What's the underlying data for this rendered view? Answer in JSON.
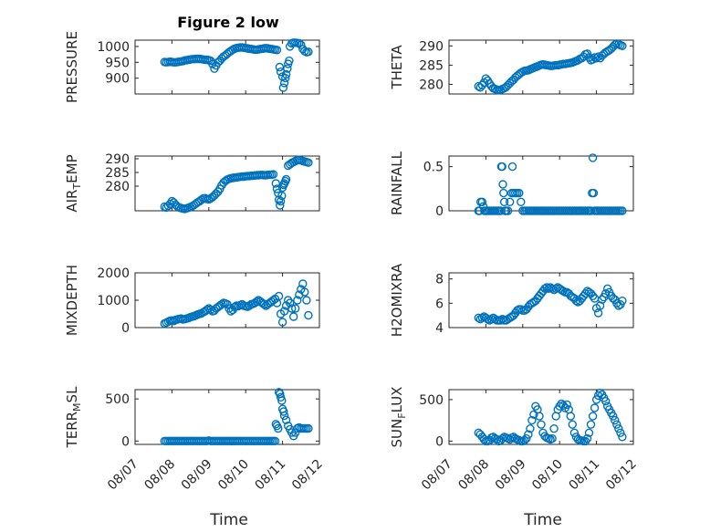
{
  "figure": {
    "title": "Figure 2 low",
    "marker_color": "#0072BD",
    "x_ticks": [
      "08/07",
      "08/08",
      "08/09",
      "08/10",
      "08/11",
      "08/12"
    ],
    "x_label": "Time"
  },
  "chart_data": [
    {
      "type": "scatter",
      "ylabel": "PRESSURE",
      "ylim": [
        850,
        1020
      ],
      "yticks": [
        900,
        950,
        1000
      ],
      "grid": true,
      "x": [
        7.8,
        7.85,
        7.9,
        7.95,
        8.0,
        8.05,
        8.1,
        8.15,
        8.2,
        8.25,
        8.3,
        8.35,
        8.4,
        8.45,
        8.5,
        8.55,
        8.6,
        8.65,
        8.7,
        8.75,
        8.8,
        8.85,
        8.9,
        8.95,
        9.0,
        9.05,
        9.1,
        9.15,
        9.2,
        9.25,
        9.3,
        9.35,
        9.4,
        9.45,
        9.5,
        9.55,
        9.6,
        9.65,
        9.7,
        9.75,
        9.8,
        9.85,
        9.9,
        9.95,
        10.0,
        10.05,
        10.1,
        10.15,
        10.2,
        10.25,
        10.3,
        10.35,
        10.4,
        10.45,
        10.5,
        10.55,
        10.6,
        10.65,
        10.7,
        10.75,
        10.8,
        10.85,
        10.92,
        10.95,
        11.0,
        11.02,
        11.05,
        11.08,
        11.1,
        11.13,
        11.15,
        11.18,
        11.2,
        11.25,
        11.3,
        11.35,
        11.4,
        11.45,
        11.5,
        11.55,
        11.6,
        11.65,
        11.7
      ],
      "y": [
        951,
        950,
        951,
        952,
        951,
        950,
        950,
        951,
        952,
        953,
        954,
        956,
        957,
        958,
        959,
        960,
        960,
        961,
        961,
        961,
        960,
        959,
        958,
        958,
        957,
        955,
        945,
        930,
        940,
        950,
        955,
        962,
        968,
        972,
        977,
        982,
        986,
        990,
        993,
        995,
        996,
        997,
        997,
        996,
        995,
        994,
        993,
        992,
        991,
        990,
        990,
        991,
        992,
        993,
        994,
        995,
        994,
        993,
        992,
        991,
        990,
        989,
        935,
        920,
        905,
        870,
        885,
        900,
        912,
        930,
        945,
        955,
        1000,
        1010,
        1012,
        1012,
        1011,
        1010,
        1005,
        992,
        985,
        982,
        983
      ]
    },
    {
      "type": "scatter",
      "ylabel": "THETA",
      "ylim": [
        277.5,
        291.5
      ],
      "yticks": [
        280,
        285,
        290
      ],
      "grid": true,
      "x": [
        7.8,
        7.85,
        7.9,
        7.95,
        8.0,
        8.05,
        8.1,
        8.15,
        8.2,
        8.25,
        8.3,
        8.35,
        8.4,
        8.45,
        8.5,
        8.55,
        8.6,
        8.65,
        8.7,
        8.75,
        8.8,
        8.85,
        8.9,
        8.95,
        9.0,
        9.05,
        9.1,
        9.15,
        9.2,
        9.25,
        9.3,
        9.35,
        9.4,
        9.45,
        9.5,
        9.55,
        9.6,
        9.65,
        9.7,
        9.75,
        9.8,
        9.85,
        9.9,
        9.95,
        10.0,
        10.05,
        10.1,
        10.15,
        10.2,
        10.25,
        10.3,
        10.35,
        10.4,
        10.45,
        10.5,
        10.55,
        10.6,
        10.65,
        10.7,
        10.75,
        10.8,
        10.85,
        10.9,
        10.95,
        11.0,
        11.05,
        11.1,
        11.15,
        11.2,
        11.25,
        11.3,
        11.35,
        11.4,
        11.45,
        11.5,
        11.55,
        11.6,
        11.65,
        11.7
      ],
      "y": [
        279.5,
        279.2,
        279.8,
        280.5,
        281.5,
        281.0,
        280.2,
        279.5,
        279.0,
        278.8,
        278.6,
        278.5,
        278.6,
        278.8,
        279.0,
        279.3,
        279.8,
        280.3,
        280.8,
        281.2,
        281.8,
        282.2,
        282.6,
        283.0,
        283.3,
        283.5,
        283.6,
        283.7,
        283.9,
        284.1,
        284.3,
        284.5,
        284.7,
        284.9,
        285.1,
        285.2,
        285.1,
        285.0,
        284.9,
        284.8,
        284.8,
        284.9,
        285.0,
        285.0,
        285.1,
        285.2,
        285.3,
        285.3,
        285.4,
        285.5,
        285.6,
        285.7,
        285.9,
        286.1,
        286.3,
        286.6,
        286.8,
        287.2,
        287.8,
        288.0,
        287.0,
        286.3,
        286.5,
        287.0,
        286.8,
        287.2,
        286.8,
        287.5,
        287.9,
        288.3,
        288.6,
        288.9,
        289.3,
        289.8,
        290.3,
        290.6,
        290.4,
        290.2,
        290.0
      ]
    },
    {
      "type": "scatter",
      "ylabel": "AIR_TEMP",
      "ylim": [
        271,
        291
      ],
      "yticks": [
        280,
        285,
        290
      ],
      "grid": true,
      "x": [
        7.8,
        7.85,
        7.9,
        7.95,
        8.0,
        8.05,
        8.1,
        8.15,
        8.2,
        8.25,
        8.3,
        8.35,
        8.4,
        8.45,
        8.5,
        8.55,
        8.6,
        8.65,
        8.7,
        8.75,
        8.8,
        8.85,
        8.9,
        8.95,
        9.0,
        9.05,
        9.1,
        9.15,
        9.2,
        9.25,
        9.3,
        9.35,
        9.4,
        9.45,
        9.5,
        9.55,
        9.6,
        9.65,
        9.7,
        9.75,
        9.8,
        9.85,
        9.9,
        9.95,
        10.0,
        10.05,
        10.1,
        10.15,
        10.2,
        10.25,
        10.3,
        10.35,
        10.4,
        10.45,
        10.5,
        10.55,
        10.6,
        10.65,
        10.7,
        10.75,
        10.82,
        10.85,
        10.88,
        10.9,
        10.93,
        10.95,
        10.98,
        11.0,
        11.03,
        11.05,
        11.08,
        11.1,
        11.15,
        11.2,
        11.25,
        11.3,
        11.35,
        11.4,
        11.45,
        11.5,
        11.55,
        11.6,
        11.65,
        11.7
      ],
      "y": [
        272.5,
        272.2,
        272.8,
        273.5,
        274.5,
        274.0,
        273.2,
        272.6,
        272.2,
        272.0,
        271.8,
        271.7,
        271.9,
        272.1,
        272.4,
        272.7,
        273.1,
        273.6,
        274.1,
        274.5,
        275.0,
        275.5,
        275.6,
        275.3,
        275.2,
        275.5,
        276.0,
        276.6,
        277.3,
        278.0,
        279.0,
        280.3,
        281.3,
        281.9,
        282.4,
        282.7,
        282.9,
        283.0,
        283.1,
        283.2,
        283.3,
        283.4,
        283.5,
        283.5,
        283.6,
        283.7,
        283.7,
        283.8,
        283.8,
        283.9,
        284.0,
        284.0,
        284.1,
        284.1,
        284.0,
        284.0,
        284.1,
        284.2,
        284.2,
        284.3,
        281.0,
        279.0,
        277.5,
        275.0,
        273.0,
        274.5,
        276.5,
        279.5,
        280.5,
        281.0,
        281.8,
        282.5,
        287.5,
        288.0,
        288.5,
        288.8,
        289.2,
        289.5,
        289.6,
        289.4,
        289.2,
        289.0,
        288.8,
        288.6
      ]
    },
    {
      "type": "scatter",
      "ylabel": "RAINFALL",
      "ylim": [
        0,
        0.62
      ],
      "yticks": [
        0,
        0.5
      ],
      "grid": true,
      "x": [
        7.8,
        7.83,
        7.86,
        7.9,
        7.93,
        7.96,
        8.0,
        8.05,
        8.1,
        8.15,
        8.2,
        8.25,
        8.3,
        8.35,
        8.4,
        8.42,
        8.44,
        8.46,
        8.48,
        8.5,
        8.52,
        8.55,
        8.6,
        8.65,
        8.7,
        8.72,
        8.75,
        8.8,
        8.85,
        8.9,
        8.95,
        9.0,
        9.05,
        9.1,
        9.15,
        9.2,
        9.25,
        9.3,
        9.35,
        9.4,
        9.45,
        9.5,
        9.55,
        9.6,
        9.65,
        9.7,
        9.75,
        9.8,
        9.85,
        9.9,
        9.95,
        10.0,
        10.05,
        10.1,
        10.15,
        10.2,
        10.25,
        10.3,
        10.35,
        10.4,
        10.45,
        10.5,
        10.55,
        10.6,
        10.65,
        10.7,
        10.75,
        10.8,
        10.85,
        10.88,
        10.9,
        10.92,
        10.95,
        11.0,
        11.05,
        11.1,
        11.15,
        11.2,
        11.25,
        11.3,
        11.35,
        11.4,
        11.45,
        11.5,
        11.55,
        11.6,
        11.65,
        11.7
      ],
      "y": [
        0,
        0,
        0.1,
        0.1,
        0.05,
        0,
        0,
        0,
        0,
        0,
        0,
        0,
        0,
        0,
        0,
        0.5,
        0.5,
        0.3,
        0.2,
        0.1,
        0,
        0,
        0,
        0.1,
        0.2,
        0.5,
        0.2,
        0.2,
        0.2,
        0.2,
        0.1,
        0,
        0,
        0,
        0,
        0,
        0,
        0,
        0,
        0,
        0,
        0,
        0,
        0,
        0,
        0,
        0,
        0,
        0,
        0,
        0,
        0,
        0,
        0,
        0,
        0,
        0,
        0,
        0,
        0,
        0,
        0,
        0,
        0,
        0,
        0,
        0,
        0,
        0,
        0.2,
        0.6,
        0.2,
        0,
        0,
        0,
        0,
        0,
        0,
        0,
        0,
        0,
        0,
        0,
        0,
        0,
        0,
        0,
        0
      ]
    },
    {
      "type": "scatter",
      "ylabel": "MIXDEPTH",
      "ylim": [
        0,
        2000
      ],
      "yticks": [
        0,
        1000,
        2000
      ],
      "grid": true,
      "x": [
        7.8,
        7.85,
        7.9,
        7.95,
        8.0,
        8.05,
        8.1,
        8.15,
        8.2,
        8.25,
        8.3,
        8.35,
        8.4,
        8.45,
        8.5,
        8.55,
        8.6,
        8.65,
        8.7,
        8.75,
        8.8,
        8.85,
        8.9,
        8.95,
        9.0,
        9.05,
        9.1,
        9.15,
        9.2,
        9.25,
        9.3,
        9.35,
        9.4,
        9.45,
        9.5,
        9.55,
        9.6,
        9.65,
        9.7,
        9.75,
        9.8,
        9.85,
        9.9,
        9.95,
        10.0,
        10.05,
        10.1,
        10.15,
        10.2,
        10.25,
        10.3,
        10.35,
        10.4,
        10.45,
        10.5,
        10.55,
        10.6,
        10.65,
        10.7,
        10.75,
        10.8,
        10.85,
        10.9,
        10.95,
        11.0,
        11.05,
        11.1,
        11.15,
        11.2,
        11.25,
        11.3,
        11.35,
        11.4,
        11.45,
        11.5,
        11.55,
        11.6,
        11.65,
        11.7
      ],
      "y": [
        150,
        180,
        220,
        250,
        260,
        240,
        280,
        300,
        320,
        330,
        300,
        310,
        330,
        350,
        380,
        400,
        420,
        450,
        480,
        500,
        520,
        560,
        600,
        650,
        700,
        650,
        600,
        620,
        700,
        750,
        800,
        850,
        900,
        880,
        850,
        700,
        600,
        650,
        750,
        800,
        780,
        820,
        850,
        800,
        780,
        760,
        800,
        850,
        870,
        900,
        950,
        1000,
        950,
        900,
        850,
        800,
        850,
        900,
        950,
        1000,
        1050,
        900,
        1150,
        500,
        200,
        600,
        800,
        1000,
        900,
        700,
        400,
        700,
        1000,
        1200,
        1400,
        1600,
        1300,
        1000,
        450
      ]
    },
    {
      "type": "scatter",
      "ylabel": "H2OMIXRA",
      "ylim": [
        4,
        8.5
      ],
      "yticks": [
        4,
        6,
        8
      ],
      "grid": true,
      "x": [
        7.8,
        7.85,
        7.9,
        7.95,
        8.0,
        8.05,
        8.1,
        8.15,
        8.2,
        8.25,
        8.3,
        8.35,
        8.4,
        8.45,
        8.5,
        8.55,
        8.6,
        8.65,
        8.7,
        8.75,
        8.8,
        8.85,
        8.9,
        8.95,
        9.0,
        9.05,
        9.1,
        9.15,
        9.2,
        9.25,
        9.3,
        9.35,
        9.4,
        9.45,
        9.5,
        9.55,
        9.6,
        9.65,
        9.7,
        9.75,
        9.8,
        9.85,
        9.9,
        9.95,
        10.0,
        10.05,
        10.1,
        10.15,
        10.2,
        10.25,
        10.3,
        10.35,
        10.4,
        10.45,
        10.5,
        10.55,
        10.6,
        10.65,
        10.7,
        10.75,
        10.8,
        10.85,
        10.9,
        10.95,
        11.0,
        11.05,
        11.1,
        11.15,
        11.2,
        11.25,
        11.3,
        11.35,
        11.4,
        11.45,
        11.5,
        11.55,
        11.6,
        11.65,
        11.7
      ],
      "y": [
        4.8,
        4.7,
        4.8,
        4.9,
        4.8,
        4.7,
        4.6,
        4.7,
        4.8,
        4.7,
        4.6,
        4.6,
        4.6,
        4.7,
        4.6,
        4.6,
        4.7,
        4.8,
        4.9,
        5.0,
        5.2,
        5.4,
        5.5,
        5.5,
        5.4,
        5.4,
        5.5,
        5.7,
        5.9,
        6.0,
        6.1,
        6.2,
        6.4,
        6.6,
        6.8,
        7.0,
        7.2,
        7.3,
        7.2,
        7.3,
        7.2,
        7.1,
        7.2,
        7.3,
        7.2,
        7.1,
        7.0,
        6.9,
        6.9,
        6.8,
        6.6,
        6.5,
        6.4,
        6.2,
        6.1,
        6.2,
        6.4,
        6.6,
        6.8,
        7.0,
        6.9,
        6.8,
        6.6,
        6.4,
        5.6,
        5.2,
        5.8,
        6.3,
        6.5,
        6.8,
        7.2,
        6.9,
        6.6,
        6.4,
        6.3,
        6.0,
        5.8,
        5.9,
        6.2
      ]
    },
    {
      "type": "scatter",
      "ylabel": "TERR_MSL",
      "ylim": [
        -40,
        610
      ],
      "yticks": [
        0,
        500
      ],
      "grid": true,
      "x": [
        7.8,
        7.85,
        7.9,
        7.95,
        8.0,
        8.05,
        8.1,
        8.15,
        8.2,
        8.25,
        8.3,
        8.35,
        8.4,
        8.45,
        8.5,
        8.55,
        8.6,
        8.65,
        8.7,
        8.75,
        8.8,
        8.85,
        8.9,
        8.95,
        9.0,
        9.05,
        9.1,
        9.15,
        9.2,
        9.25,
        9.3,
        9.35,
        9.4,
        9.45,
        9.5,
        9.55,
        9.6,
        9.65,
        9.7,
        9.75,
        9.8,
        9.85,
        9.9,
        9.95,
        10.0,
        10.05,
        10.1,
        10.15,
        10.2,
        10.25,
        10.3,
        10.35,
        10.4,
        10.45,
        10.5,
        10.55,
        10.6,
        10.65,
        10.7,
        10.75,
        10.8,
        10.82,
        10.85,
        10.88,
        10.9,
        10.93,
        10.95,
        10.98,
        11.0,
        11.03,
        11.05,
        11.1,
        11.15,
        11.2,
        11.25,
        11.3,
        11.35,
        11.4,
        11.45,
        11.5,
        11.55,
        11.6,
        11.65,
        11.7
      ],
      "y": [
        0,
        0,
        0,
        0,
        0,
        0,
        0,
        0,
        0,
        0,
        0,
        0,
        0,
        0,
        0,
        0,
        0,
        0,
        0,
        0,
        0,
        0,
        0,
        0,
        5,
        0,
        0,
        0,
        0,
        0,
        0,
        0,
        0,
        0,
        0,
        0,
        0,
        0,
        0,
        0,
        0,
        0,
        0,
        0,
        0,
        0,
        0,
        0,
        0,
        0,
        0,
        0,
        0,
        0,
        0,
        0,
        0,
        0,
        0,
        0,
        0,
        200,
        180,
        150,
        580,
        560,
        520,
        480,
        380,
        350,
        300,
        250,
        180,
        140,
        100,
        60,
        100,
        150,
        160,
        150,
        150,
        150,
        150,
        150
      ]
    },
    {
      "type": "scatter",
      "ylabel": "SUN_FLUX",
      "ylim": [
        -40,
        620
      ],
      "yticks": [
        0,
        500
      ],
      "grid": true,
      "x": [
        7.8,
        7.85,
        7.9,
        7.95,
        8.0,
        8.05,
        8.1,
        8.15,
        8.2,
        8.25,
        8.3,
        8.35,
        8.4,
        8.45,
        8.5,
        8.55,
        8.6,
        8.65,
        8.7,
        8.75,
        8.8,
        8.85,
        8.9,
        8.95,
        9.0,
        9.05,
        9.1,
        9.15,
        9.2,
        9.25,
        9.3,
        9.35,
        9.4,
        9.45,
        9.5,
        9.55,
        9.6,
        9.65,
        9.7,
        9.75,
        9.8,
        9.85,
        9.9,
        9.95,
        10.0,
        10.05,
        10.1,
        10.15,
        10.2,
        10.25,
        10.3,
        10.35,
        10.4,
        10.45,
        10.5,
        10.55,
        10.6,
        10.65,
        10.7,
        10.75,
        10.8,
        10.85,
        10.9,
        10.95,
        11.0,
        11.05,
        11.1,
        11.15,
        11.2,
        11.25,
        11.3,
        11.35,
        11.4,
        11.45,
        11.5,
        11.55,
        11.6,
        11.65,
        11.7
      ],
      "y": [
        100,
        80,
        50,
        20,
        0,
        0,
        10,
        40,
        50,
        30,
        20,
        0,
        10,
        30,
        50,
        40,
        30,
        20,
        40,
        50,
        30,
        20,
        10,
        0,
        0,
        10,
        30,
        80,
        150,
        250,
        320,
        420,
        380,
        300,
        200,
        100,
        60,
        40,
        30,
        20,
        30,
        150,
        300,
        380,
        420,
        450,
        430,
        400,
        440,
        380,
        300,
        200,
        100,
        50,
        20,
        10,
        5,
        0,
        0,
        30,
        100,
        200,
        300,
        400,
        500,
        550,
        580,
        560,
        520,
        480,
        420,
        380,
        340,
        300,
        250,
        200,
        150,
        100,
        50
      ]
    }
  ]
}
